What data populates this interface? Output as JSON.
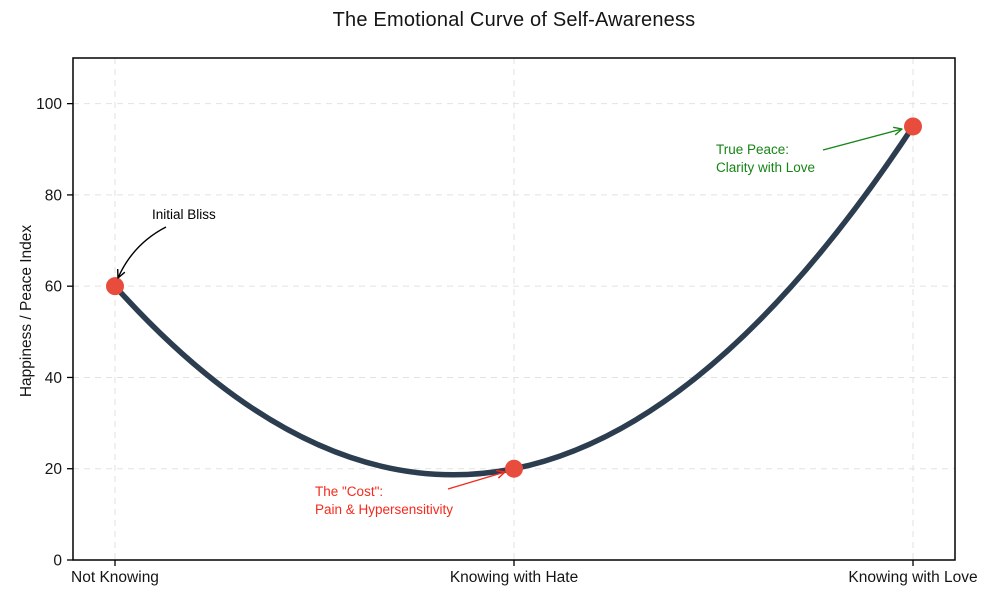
{
  "chart_data": {
    "type": "line",
    "title": "The Emotional Curve of Self-Awareness",
    "xlabel": "",
    "ylabel": "Happiness / Peace Index",
    "categories": [
      "Not Knowing",
      "Knowing with Hate",
      "Knowing with Love"
    ],
    "values": [
      60,
      20,
      95
    ],
    "ylim": [
      0,
      110
    ],
    "yticks": [
      0,
      20,
      40,
      60,
      80,
      100
    ],
    "grid": true,
    "grid_style": "dashed",
    "legend": "none",
    "curve_style": "smooth quadratic spline through the three points, dipping to about 18.7 between the first and second point",
    "line_color": "#2b3d4f",
    "point_color": "#e74c3c",
    "annotations": [
      {
        "lines": [
          "Initial Bliss"
        ],
        "color": "#000000",
        "points_to": "Not Knowing"
      },
      {
        "lines": [
          "The \"Cost\":",
          "Pain & Hypersensitivity"
        ],
        "color": "#f42a1d",
        "points_to": "Knowing with Hate"
      },
      {
        "lines": [
          "True Peace:",
          "Clarity with Love"
        ],
        "color": "#168516",
        "points_to": "Knowing with Love"
      }
    ]
  }
}
